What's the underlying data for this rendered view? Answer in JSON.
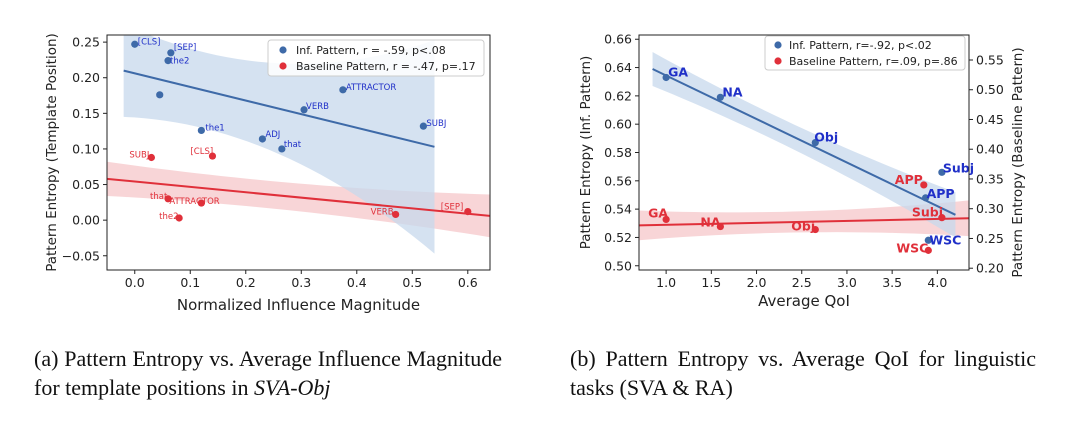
{
  "colors": {
    "inf": "#3e6aa8",
    "inf_label": "#2030c8",
    "base": "#e0303a",
    "band_inf": "#c7d8ec",
    "band_base": "#f6c7c9"
  },
  "captions": {
    "a_prefix": "(a) Pattern Entropy vs. Average Influence Magnitude for template positions in ",
    "a_italic": "SVA-Obj",
    "b": "(b) Pattern Entropy vs. Average QoI for linguistic tasks (SVA & RA)"
  },
  "chart_data": [
    {
      "type": "scatter",
      "xlabel": "Normalized Influence Magnitude",
      "ylabel": "Pattern Entropy (Template Position)",
      "xlim": [
        -0.05,
        0.64
      ],
      "ylim": [
        -0.07,
        0.26
      ],
      "xticks": [
        "0.0",
        "0.1",
        "0.2",
        "0.3",
        "0.4",
        "0.5",
        "0.6"
      ],
      "yticks": [
        "−0.05",
        "0.00",
        "0.05",
        "0.10",
        "0.15",
        "0.20",
        "0.25"
      ],
      "legend_position": "top-right",
      "series": [
        {
          "name": "Inf. Pattern, r = -.59, p<.08",
          "points": [
            {
              "x": 0.0,
              "y": 0.247,
              "label": "[CLS]"
            },
            {
              "x": 0.065,
              "y": 0.235,
              "label": "[SEP]"
            },
            {
              "x": 0.06,
              "y": 0.224,
              "label": "the2"
            },
            {
              "x": 0.045,
              "y": 0.176,
              "label": ""
            },
            {
              "x": 0.12,
              "y": 0.126,
              "label": "the1"
            },
            {
              "x": 0.23,
              "y": 0.114,
              "label": "ADJ"
            },
            {
              "x": 0.265,
              "y": 0.1,
              "label": "that"
            },
            {
              "x": 0.305,
              "y": 0.155,
              "label": "VERB"
            },
            {
              "x": 0.375,
              "y": 0.183,
              "label": "ATTRACTOR"
            },
            {
              "x": 0.52,
              "y": 0.132,
              "label": "SUBJ"
            }
          ],
          "fit": [
            {
              "x": -0.02,
              "y": 0.21
            },
            {
              "x": 0.54,
              "y": 0.103
            }
          ]
        },
        {
          "name": "Baseline Pattern, r = -.47, p=.17",
          "points": [
            {
              "x": 0.03,
              "y": 0.088,
              "label": "SUBJ"
            },
            {
              "x": 0.14,
              "y": 0.09,
              "label": "[CLS]"
            },
            {
              "x": 0.06,
              "y": 0.03,
              "label": "that"
            },
            {
              "x": 0.12,
              "y": 0.024,
              "label": "ATTRACTOR"
            },
            {
              "x": 0.08,
              "y": 0.003,
              "label": "the2"
            },
            {
              "x": 0.47,
              "y": 0.008,
              "label": "VERB"
            },
            {
              "x": 0.6,
              "y": 0.012,
              "label": "[SEP]"
            }
          ],
          "fit": [
            {
              "x": -0.05,
              "y": 0.058
            },
            {
              "x": 0.64,
              "y": 0.006
            }
          ]
        }
      ]
    },
    {
      "type": "scatter",
      "xlabel": "Average QoI",
      "ylabel": "Pattern Entropy (Inf. Pattern)",
      "ylabel_right": "Pattern Entropy (Baseline Pattern)",
      "xlim": [
        0.7,
        4.35
      ],
      "ylim": [
        0.497,
        0.663
      ],
      "ylim_right": [
        0.197,
        0.592
      ],
      "xticks": [
        "1.0",
        "1.5",
        "2.0",
        "2.5",
        "3.0",
        "3.5",
        "4.0"
      ],
      "yticks": [
        "0.50",
        "0.52",
        "0.54",
        "0.56",
        "0.58",
        "0.60",
        "0.62",
        "0.64",
        "0.66"
      ],
      "yticks_right": [
        "0.20",
        "0.25",
        "0.30",
        "0.35",
        "0.40",
        "0.45",
        "0.50",
        "0.55"
      ],
      "legend_position": "top-right",
      "series": [
        {
          "name": "Inf. Pattern, r=-.92, p<.02",
          "axis": "left",
          "points": [
            {
              "x": 1.0,
              "y": 0.633,
              "label": "GA"
            },
            {
              "x": 1.6,
              "y": 0.619,
              "label": "NA"
            },
            {
              "x": 2.65,
              "y": 0.587,
              "label": "Obj"
            },
            {
              "x": 4.05,
              "y": 0.566,
              "label": "Subj"
            },
            {
              "x": 3.87,
              "y": 0.548,
              "label": "APP"
            },
            {
              "x": 3.9,
              "y": 0.518,
              "label": "WSC"
            }
          ],
          "fit": [
            {
              "x": 0.85,
              "y": 0.639
            },
            {
              "x": 4.2,
              "y": 0.536
            }
          ]
        },
        {
          "name": "Baseline Pattern, r=.09, p=.86",
          "axis": "right",
          "points": [
            {
              "x": 1.0,
              "y": 0.282,
              "label": "GA"
            },
            {
              "x": 1.6,
              "y": 0.27,
              "label": "NA"
            },
            {
              "x": 2.65,
              "y": 0.265,
              "label": "Obj"
            },
            {
              "x": 3.85,
              "y": 0.34,
              "label": "APP"
            },
            {
              "x": 4.05,
              "y": 0.285,
              "label": "Subj"
            },
            {
              "x": 3.9,
              "y": 0.23,
              "label": "WSC"
            }
          ],
          "fit": [
            {
              "x": 0.7,
              "y": 0.272
            },
            {
              "x": 4.35,
              "y": 0.284
            }
          ]
        }
      ]
    }
  ]
}
